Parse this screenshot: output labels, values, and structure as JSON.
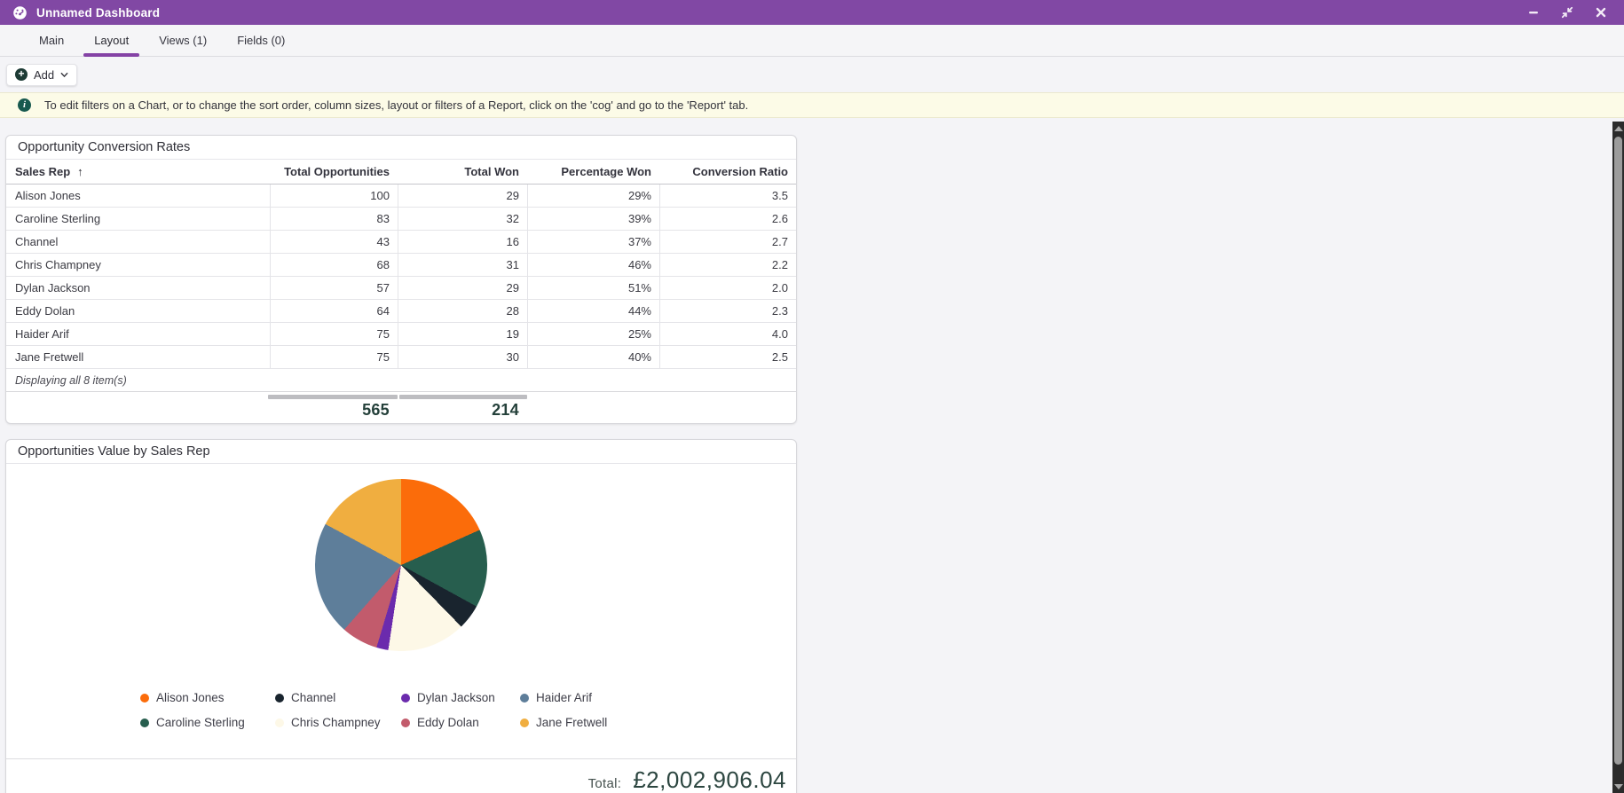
{
  "titlebar": {
    "title": "Unnamed Dashboard"
  },
  "icons": {
    "sort_ascending": "↑",
    "add_plus": "+",
    "info": "i"
  },
  "tabs": {
    "items": [
      {
        "label": "Main",
        "active": false
      },
      {
        "label": "Layout",
        "active": true
      },
      {
        "label": "Views (1)",
        "active": false
      },
      {
        "label": "Fields (0)",
        "active": false
      }
    ]
  },
  "toolbar": {
    "add_label": "Add"
  },
  "banner": {
    "text": "To edit filters on a Chart, or to change the sort order, column sizes, layout or filters of a Report, click on the 'cog' and go to the 'Report' tab."
  },
  "report": {
    "title": "Opportunity Conversion Rates",
    "columns": [
      "Sales Rep",
      "Total Opportunities",
      "Total Won",
      "Percentage Won",
      "Conversion Ratio"
    ],
    "sorted_column": "Sales Rep",
    "sort_direction": "ascending",
    "rows": [
      {
        "sales_rep": "Alison Jones",
        "total_opportunities": "100",
        "total_won": "29",
        "percentage_won": "29%",
        "conversion_ratio": "3.5"
      },
      {
        "sales_rep": "Caroline Sterling",
        "total_opportunities": "83",
        "total_won": "32",
        "percentage_won": "39%",
        "conversion_ratio": "2.6"
      },
      {
        "sales_rep": "Channel",
        "total_opportunities": "43",
        "total_won": "16",
        "percentage_won": "37%",
        "conversion_ratio": "2.7"
      },
      {
        "sales_rep": "Chris Champney",
        "total_opportunities": "68",
        "total_won": "31",
        "percentage_won": "46%",
        "conversion_ratio": "2.2"
      },
      {
        "sales_rep": "Dylan Jackson",
        "total_opportunities": "57",
        "total_won": "29",
        "percentage_won": "51%",
        "conversion_ratio": "2.0"
      },
      {
        "sales_rep": "Eddy Dolan",
        "total_opportunities": "64",
        "total_won": "28",
        "percentage_won": "44%",
        "conversion_ratio": "2.3"
      },
      {
        "sales_rep": "Haider Arif",
        "total_opportunities": "75",
        "total_won": "19",
        "percentage_won": "25%",
        "conversion_ratio": "4.0"
      },
      {
        "sales_rep": "Jane Fretwell",
        "total_opportunities": "75",
        "total_won": "30",
        "percentage_won": "40%",
        "conversion_ratio": "2.5"
      }
    ],
    "footer_note": "Displaying all 8 item(s)",
    "totals": {
      "total_opportunities": "565",
      "total_won": "214"
    }
  },
  "value_chart": {
    "title": "Opportunities Value by Sales Rep",
    "total_label": "Total:",
    "total_value": "£2,002,906.04"
  },
  "chart_data": {
    "type": "pie",
    "title": "Opportunities Value by Sales Rep",
    "series": [
      {
        "name": "Alison Jones",
        "percent": 18.3,
        "color": "#FB6C0A"
      },
      {
        "name": "Caroline Sterling",
        "percent": 14.7,
        "color": "#275E4E"
      },
      {
        "name": "Channel",
        "percent": 4.7,
        "color": "#19242E"
      },
      {
        "name": "Chris Champney",
        "percent": 14.7,
        "color": "#FDF8E7"
      },
      {
        "name": "Dylan Jackson",
        "percent": 2.2,
        "color": "#6B2BAD"
      },
      {
        "name": "Eddy Dolan",
        "percent": 6.9,
        "color": "#C25B6C"
      },
      {
        "name": "Haider Arif",
        "percent": 21.4,
        "color": "#5E7E9A"
      },
      {
        "name": "Jane Fretwell",
        "percent": 17.1,
        "color": "#F0AE40"
      }
    ],
    "legend_position": "bottom",
    "legend_order": [
      "Alison Jones",
      "Channel",
      "Dylan Jackson",
      "Haider Arif",
      "Caroline Sterling",
      "Chris Champney",
      "Eddy Dolan",
      "Jane Fretwell"
    ],
    "total": "£2,002,906.04"
  }
}
